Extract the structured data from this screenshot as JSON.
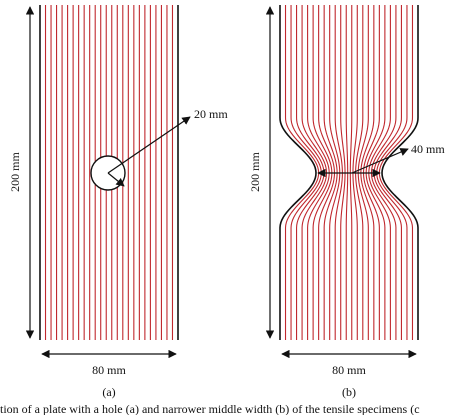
{
  "panels": [
    {
      "label": "(a)",
      "height_label": "200 mm",
      "width_label": "80 mm",
      "feature_label": "20 mm"
    },
    {
      "label": "(b)",
      "height_label": "200 mm",
      "width_label": "80 mm",
      "feature_label": "40 mm"
    }
  ],
  "caption": "tion of a plate with a hole (a) and narrower middle width (b) of the tensile specimens (c"
}
